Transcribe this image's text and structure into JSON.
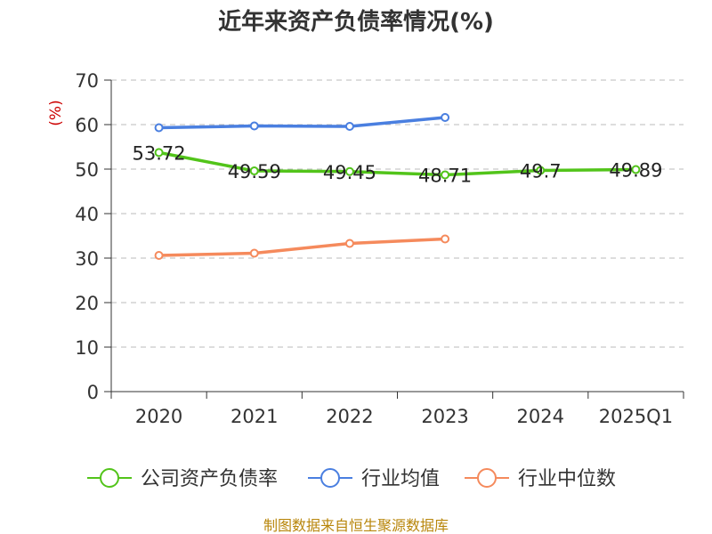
{
  "chart_data": {
    "type": "line",
    "title": "近年来资产负债率情况(%)",
    "ylabel": "(%)",
    "categories": [
      "2020",
      "2021",
      "2022",
      "2023",
      "2024",
      "2025Q1"
    ],
    "y_ticks": [
      "0",
      "10",
      "20",
      "30",
      "40",
      "50",
      "60",
      "70"
    ],
    "ylim": [
      0,
      70
    ],
    "grid": true,
    "legend_position": "bottom",
    "series": [
      {
        "name": "公司资产负债率",
        "color": "#52c41a",
        "values": [
          53.72,
          49.59,
          49.45,
          48.71,
          49.7,
          49.89
        ],
        "labels": [
          "53.72",
          "49.59",
          "49.45",
          "48.71",
          "49.7",
          "49.89"
        ]
      },
      {
        "name": "行业均值",
        "color": "#4a7fe0",
        "values": [
          59.3,
          59.7,
          59.6,
          61.6,
          null,
          null
        ]
      },
      {
        "name": "行业中位数",
        "color": "#f58a5c",
        "values": [
          30.6,
          31.1,
          33.3,
          34.3,
          null,
          null
        ]
      }
    ]
  },
  "footer": {
    "source": "制图数据来自恒生聚源数据库"
  }
}
